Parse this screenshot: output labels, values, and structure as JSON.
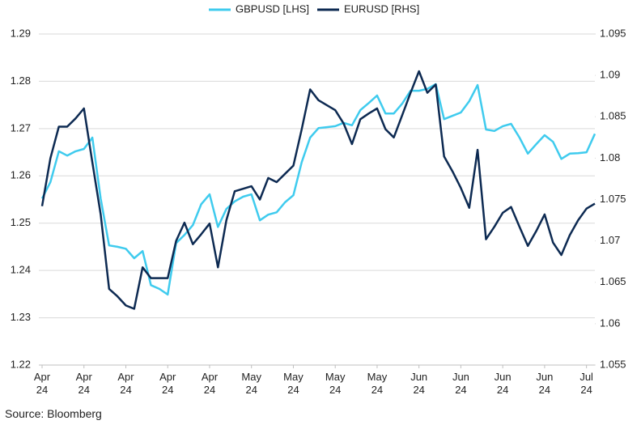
{
  "chart_data": {
    "type": "line",
    "source": "Source: Bloomberg",
    "x": [
      0,
      1,
      2,
      3,
      4,
      5,
      6,
      7,
      8,
      9,
      10,
      11,
      12,
      13,
      14,
      15,
      16,
      17,
      18,
      19,
      20,
      21,
      22,
      23,
      24,
      25,
      26,
      27,
      28,
      29,
      30,
      31,
      32,
      33,
      34,
      35,
      36,
      37,
      38,
      39,
      40,
      41,
      42,
      43,
      44,
      45,
      46,
      47,
      48,
      49,
      50,
      51,
      52,
      53,
      54,
      55,
      56,
      57,
      58,
      59,
      60,
      61,
      62,
      63,
      64,
      65,
      66
    ],
    "xlim": [
      0,
      66
    ],
    "xticks": [
      {
        "value": 0,
        "label": "Apr 24"
      },
      {
        "value": 5,
        "label": "Apr 24"
      },
      {
        "value": 10,
        "label": "Apr 24"
      },
      {
        "value": 15,
        "label": "Apr 24"
      },
      {
        "value": 20,
        "label": "Apr 24"
      },
      {
        "value": 25,
        "label": "May 24"
      },
      {
        "value": 30,
        "label": "May 24"
      },
      {
        "value": 35,
        "label": "May 24"
      },
      {
        "value": 40,
        "label": "May 24"
      },
      {
        "value": 45,
        "label": "Jun 24"
      },
      {
        "value": 50,
        "label": "Jun 24"
      },
      {
        "value": 55,
        "label": "Jun 24"
      },
      {
        "value": 60,
        "label": "Jun 24"
      },
      {
        "value": 65,
        "label": "Jul 24"
      }
    ],
    "ylim": [
      1.22,
      1.29
    ],
    "yticks": [
      1.22,
      1.23,
      1.24,
      1.25,
      1.26,
      1.27,
      1.28,
      1.29
    ],
    "y2lim": [
      1.055,
      1.095
    ],
    "y2ticks": [
      1.055,
      1.06,
      1.065,
      1.07,
      1.075,
      1.08,
      1.085,
      1.09,
      1.095
    ],
    "grid": true,
    "legend": "top",
    "series": [
      {
        "name": "GBPUSD [LHS]",
        "color": "#3fcbee",
        "axis": "y",
        "values": [
          1.2552,
          1.2587,
          1.2652,
          1.2643,
          1.2652,
          1.2657,
          1.2681,
          1.2552,
          1.2453,
          1.245,
          1.2446,
          1.2426,
          1.2441,
          1.2369,
          1.2361,
          1.2349,
          1.2458,
          1.2475,
          1.2496,
          1.254,
          1.2561,
          1.2492,
          1.253,
          1.2546,
          1.2556,
          1.2561,
          1.2506,
          1.2518,
          1.2523,
          1.2544,
          1.2559,
          1.2629,
          1.2681,
          1.2701,
          1.2703,
          1.2705,
          1.2712,
          1.2707,
          1.2739,
          1.2754,
          1.277,
          1.2732,
          1.2732,
          1.2753,
          1.278,
          1.278,
          1.2784,
          1.2794,
          1.272,
          1.2727,
          1.2734,
          1.2758,
          1.2792,
          1.2698,
          1.2695,
          1.2705,
          1.271,
          1.2681,
          1.2647,
          1.2667,
          1.2686,
          1.2672,
          1.2636,
          1.2647,
          1.2648,
          1.265,
          1.2689
        ]
      },
      {
        "name": "EURUSD [RHS]",
        "color": "#0d2a52",
        "axis": "y2",
        "values": [
          1.0742,
          1.08,
          1.0838,
          1.0838,
          1.0848,
          1.086,
          1.0795,
          1.0732,
          1.0642,
          1.0633,
          1.0622,
          1.0618,
          1.0668,
          1.0655,
          1.0655,
          1.0655,
          1.07,
          1.0722,
          1.0696,
          1.0708,
          1.0721,
          1.0668,
          1.0725,
          1.076,
          1.0763,
          1.0766,
          1.075,
          1.0776,
          1.0771,
          1.0781,
          1.0791,
          1.0835,
          1.0883,
          1.087,
          1.0864,
          1.0858,
          1.0842,
          1.0817,
          1.0847,
          1.0854,
          1.086,
          1.0835,
          1.0825,
          1.0852,
          1.0879,
          1.0905,
          1.0879,
          1.0889,
          1.0802,
          1.0784,
          1.0764,
          1.074,
          1.081,
          1.0702,
          1.0717,
          1.0734,
          1.0741,
          1.0717,
          1.0694,
          1.0712,
          1.0732,
          1.0698,
          1.0683,
          1.0707,
          1.0725,
          1.0739,
          1.0745
        ]
      }
    ]
  }
}
